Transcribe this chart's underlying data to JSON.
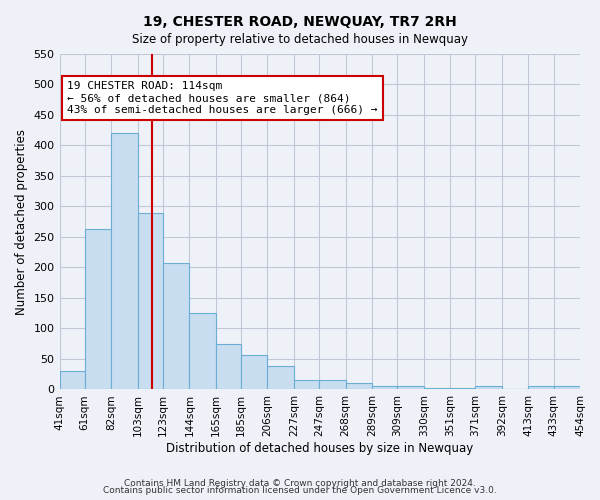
{
  "title": "19, CHESTER ROAD, NEWQUAY, TR7 2RH",
  "subtitle": "Size of property relative to detached houses in Newquay",
  "xlabel": "Distribution of detached houses by size in Newquay",
  "ylabel": "Number of detached properties",
  "bar_labels": [
    "41sqm",
    "61sqm",
    "82sqm",
    "103sqm",
    "123sqm",
    "144sqm",
    "165sqm",
    "185sqm",
    "206sqm",
    "227sqm",
    "247sqm",
    "268sqm",
    "289sqm",
    "309sqm",
    "330sqm",
    "351sqm",
    "371sqm",
    "392sqm",
    "413sqm",
    "433sqm",
    "454sqm"
  ],
  "bar_left_edges": [
    41,
    61,
    82,
    103,
    123,
    144,
    165,
    185,
    206,
    227,
    247,
    268,
    289,
    309,
    330,
    351,
    371,
    392,
    413,
    433
  ],
  "bar_values": [
    30,
    263,
    420,
    290,
    207,
    126,
    75,
    57,
    38,
    15,
    16,
    10,
    5,
    5,
    3,
    3,
    5,
    0,
    5,
    5
  ],
  "bar_widths": [
    20,
    21,
    21,
    20,
    21,
    21,
    20,
    21,
    21,
    20,
    21,
    21,
    20,
    21,
    21,
    20,
    21,
    21,
    20,
    21
  ],
  "tick_positions": [
    41,
    61,
    82,
    103,
    123,
    144,
    165,
    185,
    206,
    227,
    247,
    268,
    289,
    309,
    330,
    351,
    371,
    392,
    413,
    433,
    454
  ],
  "ylim": [
    0,
    550
  ],
  "yticks": [
    0,
    50,
    100,
    150,
    200,
    250,
    300,
    350,
    400,
    450,
    500,
    550
  ],
  "bar_color": "#c9ddf0",
  "bar_edge_color": "#6aaed6",
  "vline_x": 114,
  "vline_color": "#cc0000",
  "annotation_title": "19 CHESTER ROAD: 114sqm",
  "annotation_line1": "← 56% of detached houses are smaller (864)",
  "annotation_line2": "43% of semi-detached houses are larger (666) →",
  "annotation_box_color": "#ffffff",
  "annotation_box_edge": "#cc0000",
  "grid_color": "#c0c8d8",
  "background_color": "#eef2f8",
  "footer1": "Contains HM Land Registry data © Crown copyright and database right 2024.",
  "footer2": "Contains public sector information licensed under the Open Government Licence v3.0."
}
